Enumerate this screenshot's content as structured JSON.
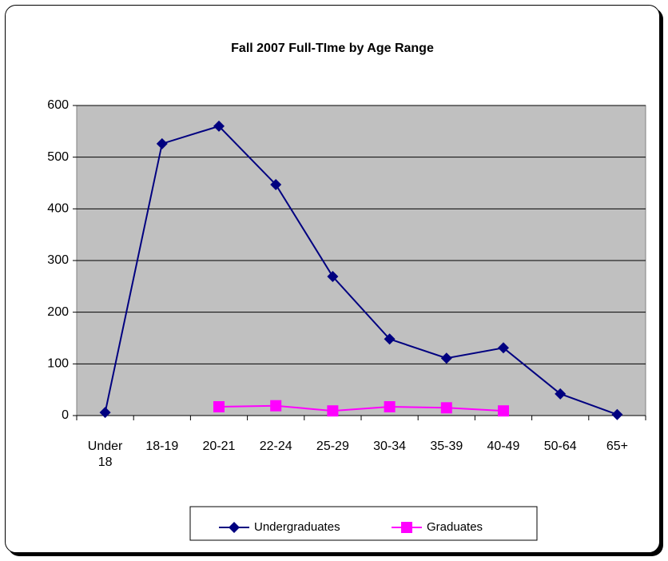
{
  "chart_data": {
    "type": "line",
    "title": "Fall 2007 Full-TIme by Age Range",
    "categories": [
      "Under 18",
      "18-19",
      "20-21",
      "22-24",
      "25-29",
      "30-34",
      "35-39",
      "40-49",
      "50-64",
      "65+"
    ],
    "series": [
      {
        "name": "Undergraduates",
        "color": "#000080",
        "marker": "diamond",
        "values": [
          6,
          526,
          560,
          447,
          269,
          148,
          111,
          131,
          42,
          2
        ]
      },
      {
        "name": "Graduates",
        "color": "#ff00ff",
        "marker": "square",
        "values": [
          null,
          null,
          17,
          19,
          9,
          17,
          15,
          9,
          null,
          null
        ]
      }
    ],
    "ylim": [
      0,
      600
    ],
    "yticks": [
      0,
      100,
      200,
      300,
      400,
      500,
      600
    ],
    "grid": true,
    "legend": "bottom"
  }
}
